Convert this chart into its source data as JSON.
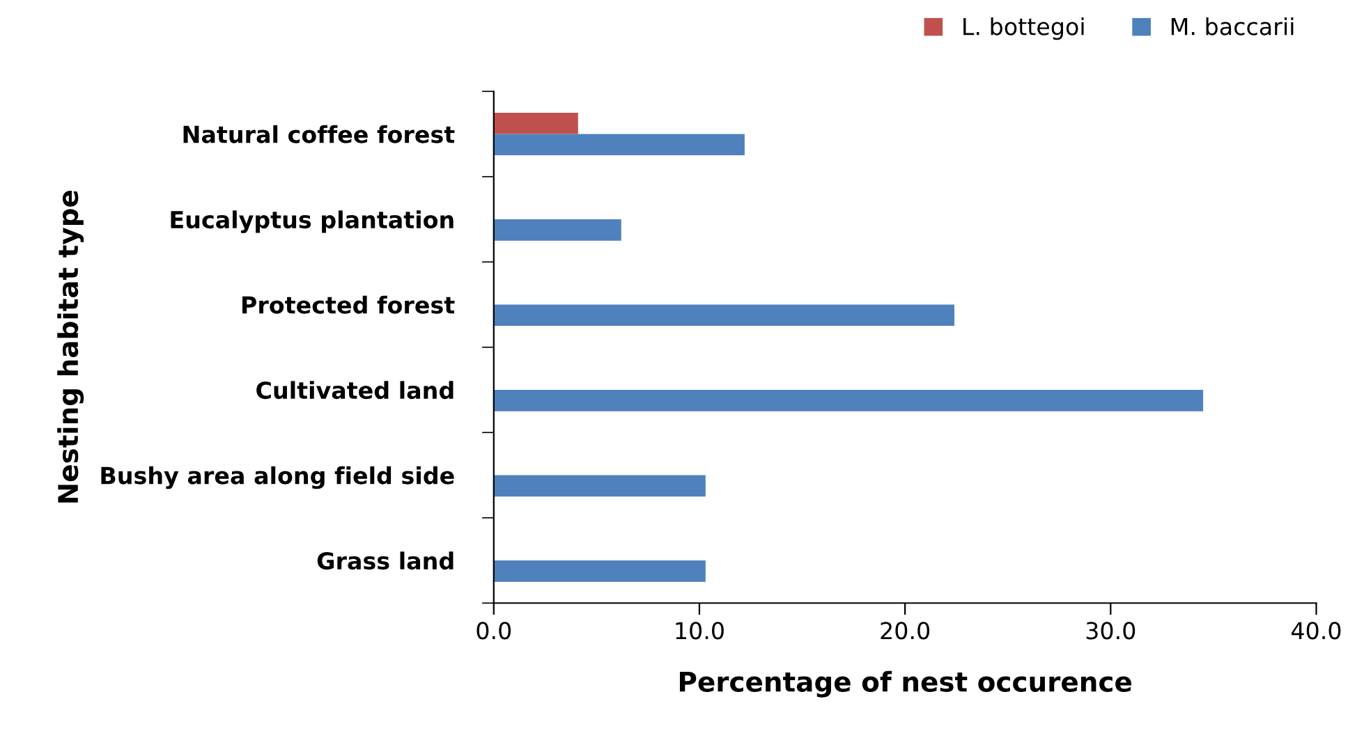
{
  "chart_data": {
    "type": "bar",
    "orientation": "horizontal",
    "categories": [
      "Natural coffee forest",
      "Eucalyptus plantation",
      "Protected forest",
      "Cultivated land",
      "Bushy area along field side",
      "Grass land"
    ],
    "series": [
      {
        "name": "L. bottegoi",
        "color": "#c0504d",
        "values": [
          4.1,
          0,
          0,
          0,
          0,
          0
        ]
      },
      {
        "name": "M. baccarii",
        "color": "#4f81bd",
        "values": [
          12.2,
          6.2,
          22.4,
          34.5,
          10.3,
          10.3
        ]
      }
    ],
    "xlabel": "Percentage of nest occurence",
    "ylabel": "Nesting habitat type",
    "xlim": [
      0,
      40
    ],
    "xticks": [
      {
        "value": 0,
        "label": "0.0"
      },
      {
        "value": 10,
        "label": "10.0"
      },
      {
        "value": 20,
        "label": "20.0"
      },
      {
        "value": 30,
        "label": "30.0"
      },
      {
        "value": 40,
        "label": "40.0"
      }
    ],
    "grid": false,
    "legend": "top right"
  }
}
